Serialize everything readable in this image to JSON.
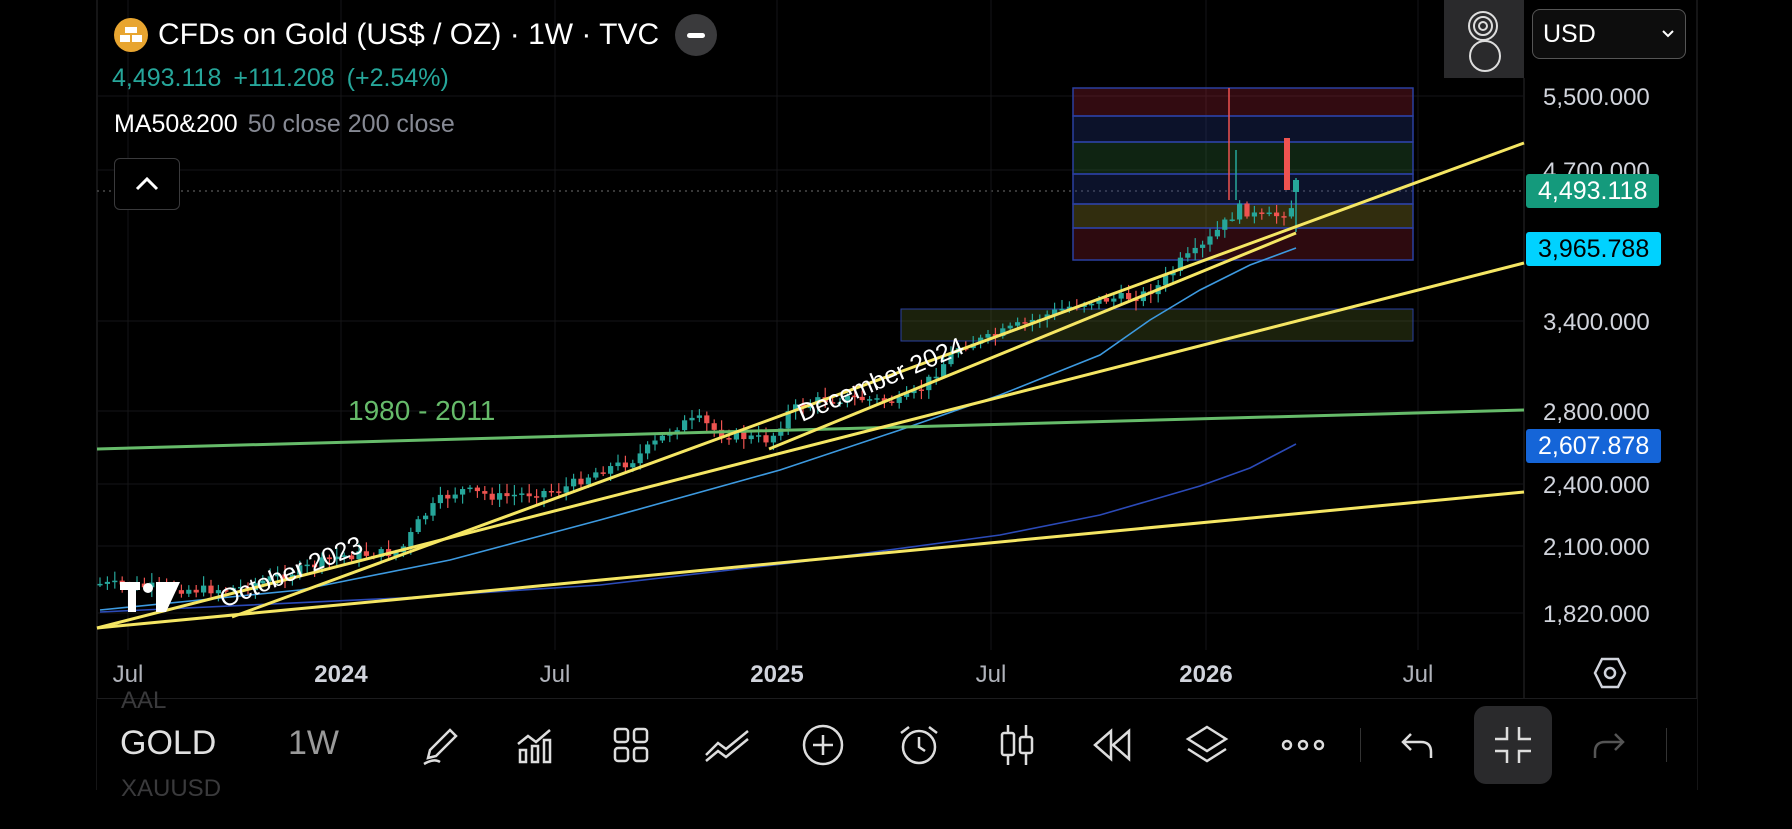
{
  "header": {
    "title": "CFDs on Gold (US$ / OZ) · 1W · TVC",
    "price": "4,493.118",
    "change": "+111.208",
    "change_pct": "(+2.54%)",
    "indicator_name": "MA50&200",
    "indicator_params": "50 close 200 close"
  },
  "currency_select": {
    "value": "USD"
  },
  "price_axis": {
    "ticks": [
      "5,500.000",
      "4,700.000",
      "3,400.000",
      "2,800.000",
      "2,400.000",
      "2,100.000",
      "1,820.000"
    ],
    "tags": [
      {
        "label": "4,493.118",
        "bg": "#149a7c",
        "fg": "#ffffff"
      },
      {
        "label": "3,965.788",
        "bg": "#00d2ff",
        "fg": "#000000"
      },
      {
        "label": "2,607.878",
        "bg": "#1565d8",
        "fg": "#ffffff"
      }
    ]
  },
  "time_axis": {
    "ticks": [
      "Jul",
      "2024",
      "Jul",
      "2025",
      "Jul",
      "2026",
      "Jul"
    ]
  },
  "annotations": {
    "green_line_label": "1980 - 2011",
    "trend_label_1": "October 2023",
    "trend_label_2": "December 2024"
  },
  "colors": {
    "up": "#26a69a",
    "down": "#ef5350",
    "trendline": "#f5e663",
    "green_line": "#66bb6a",
    "ma50": "#3d9ae0",
    "ma200": "#2b4ab8"
  },
  "toolbar": {
    "symbol": "GOLD",
    "interval": "1W",
    "ghost_top": "AAL",
    "ghost_bottom": "XAUUSD",
    "icons": [
      "pencil-icon",
      "indicators-icon",
      "layouts-icon",
      "drawing-tools-icon",
      "add-icon",
      "alarm-icon",
      "candle-type-icon",
      "replay-icon",
      "layers-icon",
      "more-icon",
      "undo-icon",
      "collapse-icon",
      "redo-icon"
    ]
  }
}
